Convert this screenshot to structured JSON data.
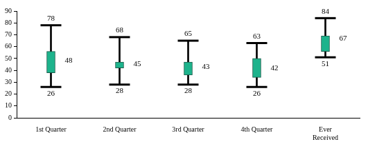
{
  "chart_data": {
    "type": "boxplot",
    "categories": [
      "1st Quarter",
      "2nd Quarter",
      "3rd Quarter",
      "4th Quarter",
      "Ever Received"
    ],
    "max": [
      78,
      68,
      65,
      63,
      84
    ],
    "min": [
      26,
      28,
      28,
      26,
      51
    ],
    "values": [
      48,
      45,
      43,
      42,
      67
    ],
    "box_low": [
      38,
      42,
      36,
      34,
      56
    ],
    "box_high": [
      56,
      47,
      47,
      50,
      69
    ],
    "color": "#1db38c",
    "ylim": [
      0,
      90
    ],
    "yticks": [
      0,
      10,
      20,
      30,
      40,
      50,
      60,
      70,
      80,
      90
    ],
    "grid": false,
    "data_labels": true
  }
}
